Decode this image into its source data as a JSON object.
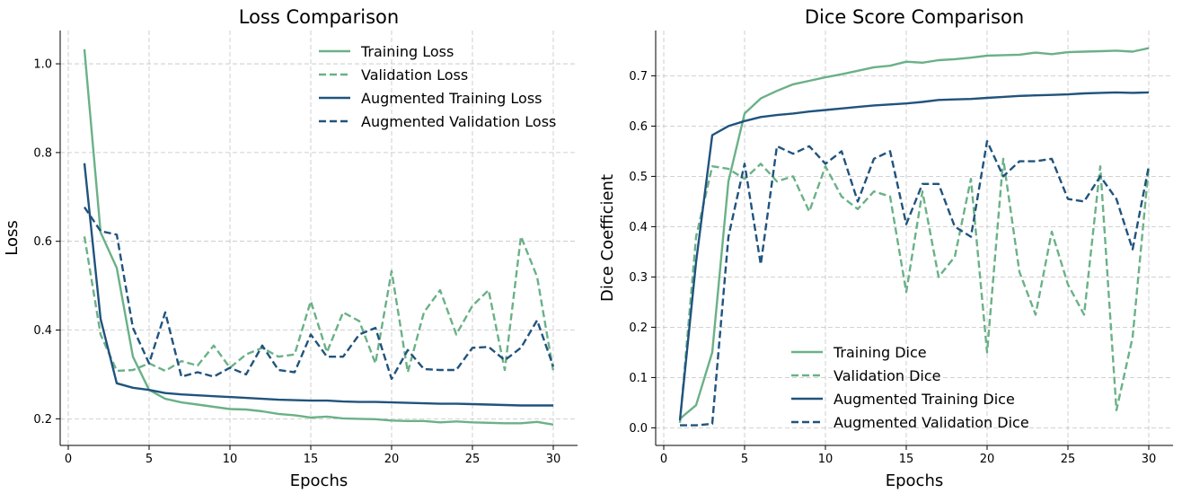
{
  "colors": {
    "green": "#6ab187",
    "blue": "#20537d"
  },
  "chart_data": [
    {
      "type": "line",
      "title": "Loss Comparison",
      "xlabel": "Epochs",
      "ylabel": "Loss",
      "xlim": [
        -0.5,
        31.5
      ],
      "ylim": [
        0.14,
        1.075
      ],
      "xticks": [
        0,
        5,
        10,
        15,
        20,
        25,
        30
      ],
      "xtick_labels": [
        "0",
        "5",
        "10",
        "15",
        "20",
        "25",
        "30"
      ],
      "yticks": [
        0.2,
        0.4,
        0.6,
        0.8,
        1.0
      ],
      "ytick_labels": [
        "0.2",
        "0.4",
        "0.6",
        "0.8",
        "1.0"
      ],
      "grid": true,
      "legend": "top-right",
      "x": [
        1,
        2,
        3,
        4,
        5,
        6,
        7,
        8,
        9,
        10,
        11,
        12,
        13,
        14,
        15,
        16,
        17,
        18,
        19,
        20,
        21,
        22,
        23,
        24,
        25,
        26,
        27,
        28,
        29,
        30
      ],
      "series": [
        {
          "name": "Training Loss",
          "color": "#6ab187",
          "style": "solid",
          "values": [
            1.033,
            0.62,
            0.54,
            0.34,
            0.265,
            0.245,
            0.237,
            0.232,
            0.227,
            0.222,
            0.221,
            0.217,
            0.211,
            0.208,
            0.203,
            0.205,
            0.201,
            0.2,
            0.199,
            0.196,
            0.195,
            0.195,
            0.192,
            0.194,
            0.192,
            0.191,
            0.19,
            0.19,
            0.193,
            0.187
          ]
        },
        {
          "name": "Validation Loss",
          "color": "#6ab187",
          "style": "dashed",
          "values": [
            0.611,
            0.39,
            0.308,
            0.31,
            0.325,
            0.308,
            0.33,
            0.32,
            0.365,
            0.315,
            0.345,
            0.36,
            0.34,
            0.345,
            0.465,
            0.35,
            0.44,
            0.42,
            0.325,
            0.533,
            0.305,
            0.44,
            0.49,
            0.39,
            0.455,
            0.49,
            0.31,
            0.611,
            0.52,
            0.308
          ]
        },
        {
          "name": "Augmented Training Loss",
          "color": "#20537d",
          "style": "solid",
          "values": [
            0.776,
            0.425,
            0.28,
            0.27,
            0.265,
            0.258,
            0.255,
            0.253,
            0.251,
            0.249,
            0.247,
            0.245,
            0.243,
            0.242,
            0.241,
            0.241,
            0.239,
            0.238,
            0.238,
            0.237,
            0.236,
            0.235,
            0.234,
            0.234,
            0.233,
            0.232,
            0.231,
            0.23,
            0.23,
            0.23
          ]
        },
        {
          "name": "Augmented Validation Loss",
          "color": "#20537d",
          "style": "dashed",
          "values": [
            0.677,
            0.623,
            0.615,
            0.405,
            0.325,
            0.44,
            0.295,
            0.305,
            0.295,
            0.315,
            0.3,
            0.365,
            0.31,
            0.305,
            0.39,
            0.34,
            0.34,
            0.39,
            0.405,
            0.29,
            0.355,
            0.312,
            0.31,
            0.31,
            0.36,
            0.362,
            0.332,
            0.36,
            0.422,
            0.318
          ]
        }
      ]
    },
    {
      "type": "line",
      "title": "Dice Score Comparison",
      "xlabel": "Epochs",
      "ylabel": "Dice Coefficient",
      "xlim": [
        -0.5,
        31.5
      ],
      "ylim": [
        -0.035,
        0.79
      ],
      "xticks": [
        0,
        5,
        10,
        15,
        20,
        25,
        30
      ],
      "xtick_labels": [
        "0",
        "5",
        "10",
        "15",
        "20",
        "25",
        "30"
      ],
      "yticks": [
        0.0,
        0.1,
        0.2,
        0.3,
        0.4,
        0.5,
        0.6,
        0.7
      ],
      "ytick_labels": [
        "0.0",
        "0.1",
        "0.2",
        "0.3",
        "0.4",
        "0.5",
        "0.6",
        "0.7"
      ],
      "grid": true,
      "legend": "bottom-center",
      "x": [
        1,
        2,
        3,
        4,
        5,
        6,
        7,
        8,
        9,
        10,
        11,
        12,
        13,
        14,
        15,
        16,
        17,
        18,
        19,
        20,
        21,
        22,
        23,
        24,
        25,
        26,
        27,
        28,
        29,
        30
      ],
      "series": [
        {
          "name": "Training Dice",
          "color": "#6ab187",
          "style": "solid",
          "values": [
            0.018,
            0.045,
            0.15,
            0.49,
            0.625,
            0.655,
            0.67,
            0.683,
            0.69,
            0.697,
            0.703,
            0.71,
            0.717,
            0.72,
            0.728,
            0.726,
            0.731,
            0.733,
            0.736,
            0.74,
            0.741,
            0.742,
            0.746,
            0.743,
            0.747,
            0.748,
            0.749,
            0.75,
            0.748,
            0.755
          ]
        },
        {
          "name": "Validation Dice",
          "color": "#6ab187",
          "style": "dashed",
          "values": [
            0.01,
            0.38,
            0.52,
            0.515,
            0.495,
            0.525,
            0.49,
            0.5,
            0.43,
            0.52,
            0.46,
            0.435,
            0.47,
            0.46,
            0.27,
            0.47,
            0.3,
            0.34,
            0.495,
            0.15,
            0.535,
            0.31,
            0.225,
            0.39,
            0.285,
            0.225,
            0.52,
            0.035,
            0.18,
            0.52
          ]
        },
        {
          "name": "Augmented Training Dice",
          "color": "#20537d",
          "style": "solid",
          "values": [
            0.015,
            0.33,
            0.582,
            0.6,
            0.61,
            0.618,
            0.622,
            0.625,
            0.629,
            0.632,
            0.635,
            0.638,
            0.641,
            0.643,
            0.645,
            0.648,
            0.652,
            0.653,
            0.654,
            0.656,
            0.658,
            0.66,
            0.661,
            0.662,
            0.663,
            0.665,
            0.666,
            0.667,
            0.666,
            0.667
          ]
        },
        {
          "name": "Augmented Validation Dice",
          "color": "#20537d",
          "style": "dashed",
          "values": [
            0.005,
            0.005,
            0.008,
            0.38,
            0.525,
            0.325,
            0.56,
            0.545,
            0.56,
            0.525,
            0.55,
            0.45,
            0.535,
            0.55,
            0.405,
            0.485,
            0.485,
            0.4,
            0.38,
            0.57,
            0.5,
            0.53,
            0.53,
            0.535,
            0.455,
            0.45,
            0.5,
            0.455,
            0.355,
            0.52
          ]
        }
      ]
    }
  ]
}
